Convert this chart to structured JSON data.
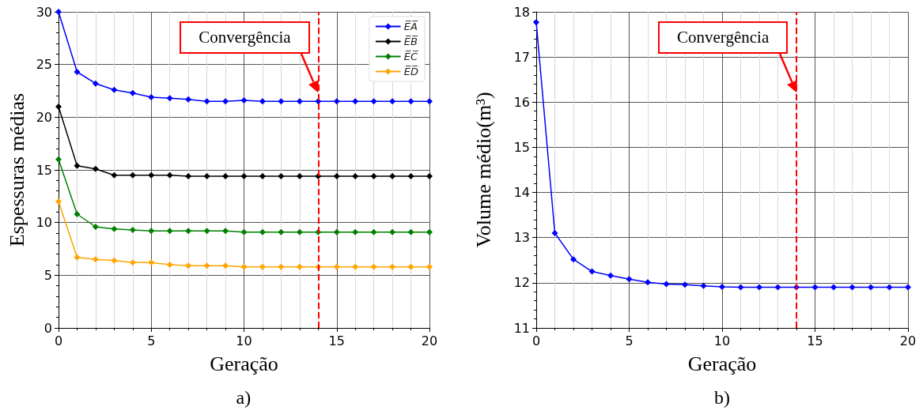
{
  "chart_data": [
    {
      "type": "line",
      "xlabel": "Geração",
      "ylabel": "Espessuras médias",
      "x": [
        0,
        1,
        2,
        3,
        4,
        5,
        6,
        7,
        8,
        9,
        10,
        11,
        12,
        13,
        14,
        15,
        16,
        17,
        18,
        19,
        20
      ],
      "series": [
        {
          "name": "E̅A̅",
          "color": "#0000ff",
          "values": [
            30,
            24.3,
            23.2,
            22.6,
            22.3,
            21.9,
            21.8,
            21.7,
            21.5,
            21.5,
            21.6,
            21.5,
            21.5,
            21.5,
            21.5,
            21.5,
            21.5,
            21.5,
            21.5,
            21.5,
            21.5
          ]
        },
        {
          "name": "E̅B̅",
          "color": "#000000",
          "values": [
            21,
            15.4,
            15.1,
            14.5,
            14.5,
            14.5,
            14.5,
            14.4,
            14.4,
            14.4,
            14.4,
            14.4,
            14.4,
            14.4,
            14.4,
            14.4,
            14.4,
            14.4,
            14.4,
            14.4,
            14.4
          ]
        },
        {
          "name": "E̅C̅",
          "color": "#008000",
          "values": [
            16,
            10.8,
            9.6,
            9.4,
            9.3,
            9.2,
            9.2,
            9.2,
            9.2,
            9.2,
            9.1,
            9.1,
            9.1,
            9.1,
            9.1,
            9.1,
            9.1,
            9.1,
            9.1,
            9.1,
            9.1
          ]
        },
        {
          "name": "E̅D̅",
          "color": "#ffa500",
          "values": [
            12,
            6.7,
            6.5,
            6.4,
            6.2,
            6.2,
            6.0,
            5.9,
            5.9,
            5.9,
            5.8,
            5.8,
            5.8,
            5.8,
            5.8,
            5.8,
            5.8,
            5.8,
            5.8,
            5.8,
            5.8
          ]
        }
      ],
      "xlim": [
        0,
        20
      ],
      "xticks": [
        0,
        5,
        10,
        15,
        20
      ],
      "ylim": [
        0,
        30
      ],
      "yticks": [
        0,
        5,
        10,
        15,
        20,
        25,
        30
      ],
      "ref_lines": [
        {
          "axis": "x",
          "value": 14,
          "color": "#ff0000",
          "line_style": "dashed"
        }
      ],
      "annotations": [
        "Convergência",
        "a)"
      ],
      "grid": true,
      "legend": "top right",
      "marker": "diamond",
      "line_style": "solid"
    },
    {
      "type": "line",
      "xlabel": "Geração",
      "ylabel": "Volume médio(m³)",
      "x": [
        0,
        1,
        2,
        3,
        4,
        5,
        6,
        7,
        8,
        9,
        10,
        11,
        12,
        13,
        14,
        15,
        16,
        17,
        18,
        19,
        20
      ],
      "series": [
        {
          "color": "#0000ff",
          "values": [
            17.77,
            13.1,
            12.52,
            12.25,
            12.16,
            12.08,
            12.01,
            11.97,
            11.96,
            11.93,
            11.91,
            11.9,
            11.9,
            11.9,
            11.9,
            11.9,
            11.9,
            11.9,
            11.9,
            11.9,
            11.9
          ]
        }
      ],
      "xlim": [
        0,
        20
      ],
      "xticks": [
        0,
        5,
        10,
        15,
        20
      ],
      "ylim": [
        11,
        18
      ],
      "yticks": [
        11,
        12,
        13,
        14,
        15,
        16,
        17,
        18
      ],
      "ref_lines": [
        {
          "axis": "x",
          "value": 14,
          "color": "#ff0000",
          "line_style": "dashed"
        }
      ],
      "annotations": [
        "Convergência",
        "b)"
      ],
      "grid": true,
      "legend": false,
      "marker": "diamond",
      "line_style": "solid"
    }
  ]
}
